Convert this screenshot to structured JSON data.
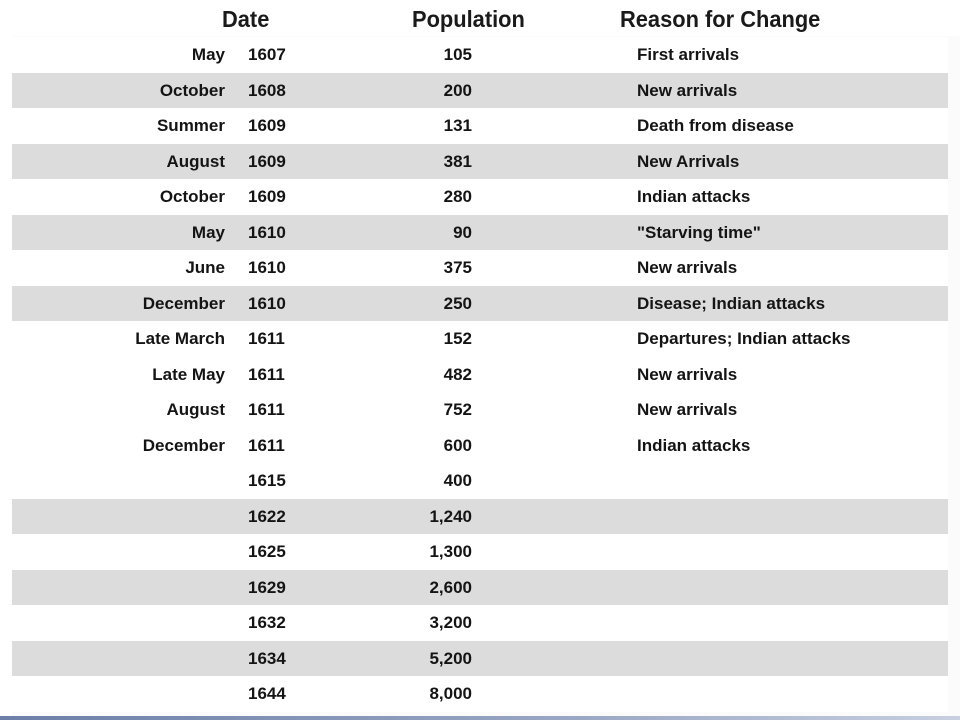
{
  "header": {
    "date": "Date",
    "population": "Population",
    "reason": "Reason for Change"
  },
  "rows": [
    {
      "month": "May",
      "year": "1607",
      "population": "105",
      "reason": "First arrivals"
    },
    {
      "month": "October",
      "year": "1608",
      "population": "200",
      "reason": "New arrivals"
    },
    {
      "month": "Summer",
      "year": "1609",
      "population": "131",
      "reason": "Death from disease"
    },
    {
      "month": "August",
      "year": "1609",
      "population": "381",
      "reason": "New Arrivals"
    },
    {
      "month": "October",
      "year": "1609",
      "population": "280",
      "reason": "Indian attacks"
    },
    {
      "month": "May",
      "year": "1610",
      "population": "90",
      "reason": "\"Starving time\""
    },
    {
      "month": "June",
      "year": "1610",
      "population": "375",
      "reason": "New arrivals"
    },
    {
      "month": "December",
      "year": "1610",
      "population": "250",
      "reason": "Disease; Indian attacks"
    },
    {
      "month": "Late March",
      "year": "1611",
      "population": "152",
      "reason": "Departures; Indian attacks"
    },
    {
      "month": "Late May",
      "year": "1611",
      "population": "482",
      "reason": "New arrivals"
    },
    {
      "month": "August",
      "year": "1611",
      "population": "752",
      "reason": "New arrivals"
    },
    {
      "month": "December",
      "year": "1611",
      "population": "600",
      "reason": "Indian attacks"
    },
    {
      "month": "",
      "year": "1615",
      "population": "400",
      "reason": ""
    },
    {
      "month": "",
      "year": "1622",
      "population": "1,240",
      "reason": ""
    },
    {
      "month": "",
      "year": "1625",
      "population": "1,300",
      "reason": ""
    },
    {
      "month": "",
      "year": "1629",
      "population": "2,600",
      "reason": ""
    },
    {
      "month": "",
      "year": "1632",
      "population": "3,200",
      "reason": ""
    },
    {
      "month": "",
      "year": "1634",
      "population": "5,200",
      "reason": ""
    },
    {
      "month": "",
      "year": "1644",
      "population": "8,000",
      "reason": ""
    }
  ]
}
